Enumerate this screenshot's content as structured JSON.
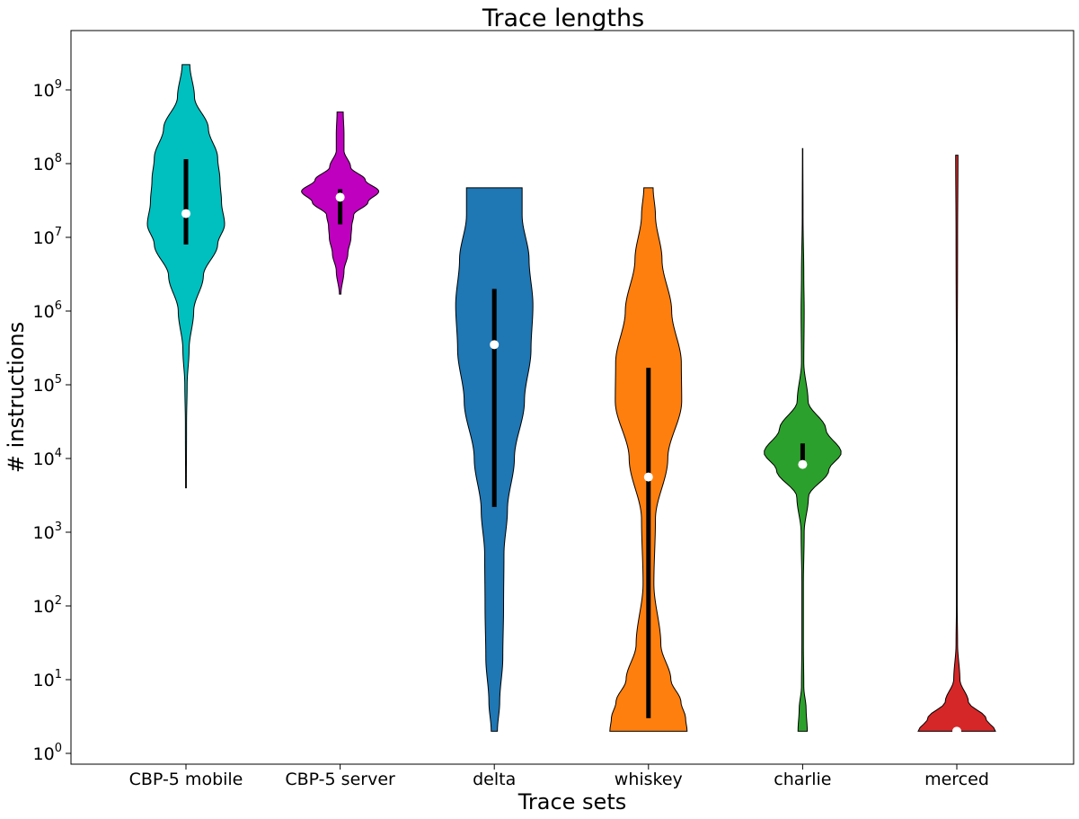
{
  "chart_data": {
    "type": "violin",
    "title": "Trace lengths",
    "xlabel": "Trace sets",
    "ylabel": "# instructions",
    "y_scale": "log",
    "ylim": [
      0.7,
      6000000000
    ],
    "y_ticks": [
      {
        "base": "10",
        "exp": "0",
        "value": 1
      },
      {
        "base": "10",
        "exp": "1",
        "value": 10
      },
      {
        "base": "10",
        "exp": "2",
        "value": 100
      },
      {
        "base": "10",
        "exp": "3",
        "value": 1000
      },
      {
        "base": "10",
        "exp": "4",
        "value": 10000
      },
      {
        "base": "10",
        "exp": "5",
        "value": 100000
      },
      {
        "base": "10",
        "exp": "6",
        "value": 1000000
      },
      {
        "base": "10",
        "exp": "7",
        "value": 10000000
      },
      {
        "base": "10",
        "exp": "8",
        "value": 100000000
      },
      {
        "base": "10",
        "exp": "9",
        "value": 1000000000
      }
    ],
    "grid": false,
    "categories": [
      "CBP-5 mobile",
      "CBP-5 server",
      "delta",
      "whiskey",
      "charlie",
      "merced"
    ],
    "series": [
      {
        "category": "CBP-5 mobile",
        "color": "#00bfbf",
        "min": 4000,
        "max": 2200000000,
        "median": 21000000,
        "q1": 8000000,
        "q3": 115000000,
        "density": [
          [
            4000,
            0.01
          ],
          [
            30000,
            0.015
          ],
          [
            100000,
            0.03
          ],
          [
            300000,
            0.08
          ],
          [
            1000000,
            0.2
          ],
          [
            3000000,
            0.45
          ],
          [
            8000000,
            0.82
          ],
          [
            15000000,
            1.0
          ],
          [
            30000000,
            0.92
          ],
          [
            60000000,
            0.88
          ],
          [
            120000000,
            0.82
          ],
          [
            300000000,
            0.58
          ],
          [
            800000000,
            0.22
          ],
          [
            2200000000,
            0.1
          ]
        ]
      },
      {
        "category": "CBP-5 server",
        "color": "#bf00bf",
        "min": 1700000,
        "max": 500000000,
        "median": 35000000,
        "q1": 15000000,
        "q3": 45000000,
        "density": [
          [
            1700000,
            0.02
          ],
          [
            3500000,
            0.1
          ],
          [
            6000000,
            0.2
          ],
          [
            10000000,
            0.28
          ],
          [
            14000000,
            0.3
          ],
          [
            20000000,
            0.35
          ],
          [
            30000000,
            0.72
          ],
          [
            42000000,
            1.0
          ],
          [
            60000000,
            0.65
          ],
          [
            90000000,
            0.27
          ],
          [
            150000000,
            0.1
          ],
          [
            250000000,
            0.1
          ],
          [
            500000000,
            0.08
          ]
        ]
      },
      {
        "category": "delta",
        "color": "#1f77b4",
        "min": 2,
        "max": 47000000,
        "median": 350000,
        "q1": 2200,
        "q3": 2000000,
        "density": [
          [
            2,
            0.08
          ],
          [
            5,
            0.14
          ],
          [
            20,
            0.22
          ],
          [
            100,
            0.24
          ],
          [
            500,
            0.25
          ],
          [
            2000,
            0.34
          ],
          [
            10000,
            0.52
          ],
          [
            60000,
            0.78
          ],
          [
            300000,
            0.95
          ],
          [
            1200000,
            1.0
          ],
          [
            5000000,
            0.9
          ],
          [
            20000000,
            0.72
          ],
          [
            47000000,
            0.72
          ]
        ]
      },
      {
        "category": "whiskey",
        "color": "#ff7f0e",
        "min": 2,
        "max": 47000000,
        "median": 5600,
        "q1": 3,
        "q3": 170000,
        "density": [
          [
            2,
            1.0
          ],
          [
            3,
            0.96
          ],
          [
            5,
            0.84
          ],
          [
            10,
            0.58
          ],
          [
            30,
            0.32
          ],
          [
            200,
            0.14
          ],
          [
            1500,
            0.18
          ],
          [
            10000,
            0.5
          ],
          [
            60000,
            0.86
          ],
          [
            200000,
            0.85
          ],
          [
            1000000,
            0.6
          ],
          [
            5000000,
            0.35
          ],
          [
            20000000,
            0.18
          ],
          [
            47000000,
            0.12
          ]
        ]
      },
      {
        "category": "charlie",
        "color": "#2ca02c",
        "min": 2,
        "max": 160000000,
        "median": 8300,
        "q1": 8300,
        "q3": 16000,
        "density": [
          [
            2,
            0.12
          ],
          [
            4,
            0.09
          ],
          [
            8,
            0.03
          ],
          [
            30,
            0.02
          ],
          [
            200,
            0.02
          ],
          [
            1000,
            0.04
          ],
          [
            3000,
            0.15
          ],
          [
            7000,
            0.68
          ],
          [
            12000,
            1.0
          ],
          [
            25000,
            0.6
          ],
          [
            60000,
            0.14
          ],
          [
            200000,
            0.03
          ],
          [
            1000000,
            0.04
          ],
          [
            3000000,
            0.03
          ],
          [
            20000000,
            0.01
          ],
          [
            160000000,
            0.005
          ]
        ]
      },
      {
        "category": "merced",
        "color": "#d62728",
        "min": 2,
        "max": 130000000,
        "median": 2,
        "q1": 2,
        "q3": 2,
        "density": [
          [
            2,
            1.0
          ],
          [
            3,
            0.75
          ],
          [
            5,
            0.3
          ],
          [
            10,
            0.08
          ],
          [
            30,
            0.02
          ],
          [
            100,
            0.01
          ],
          [
            1000,
            0.01
          ],
          [
            100000,
            0.01
          ],
          [
            10000000,
            0.02
          ],
          [
            130000000,
            0.03
          ]
        ]
      }
    ]
  }
}
